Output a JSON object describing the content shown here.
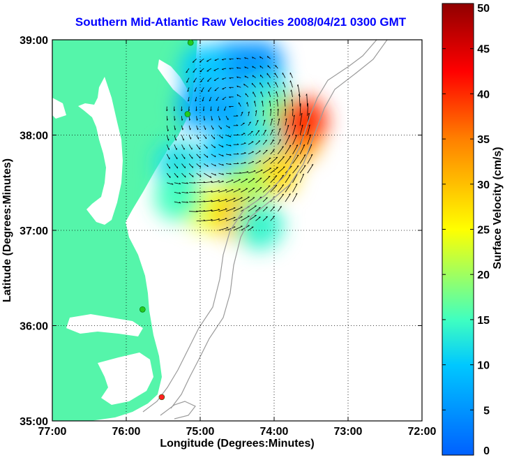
{
  "chart_data": {
    "type": "heatmap",
    "title": "Southern Mid-Atlantic Raw Velocities 2008/04/21 0300 GMT",
    "xlabel": "Longitude (Degrees:Minutes)",
    "ylabel": "Latitude (Degrees:Minutes)",
    "xlim": [
      -77,
      -72
    ],
    "ylim": [
      35,
      39
    ],
    "xticks": [
      "77:00",
      "76:00",
      "75:00",
      "74:00",
      "73:00",
      "72:00"
    ],
    "yticks": [
      "35:00",
      "36:00",
      "37:00",
      "38:00",
      "39:00"
    ],
    "grid": "dotted",
    "colorbar": {
      "label": "Surface Velocity (cm/s)",
      "min": 0,
      "max": 50,
      "ticks": [
        "0",
        "5",
        "10",
        "15",
        "20",
        "25",
        "30",
        "35",
        "40",
        "45",
        "50"
      ]
    },
    "stations": [
      {
        "lon": -75.13,
        "lat": 38.97,
        "color": "#22cc22"
      },
      {
        "lon": -75.17,
        "lat": 38.22,
        "color": "#22cc22"
      },
      {
        "lon": -75.78,
        "lat": 36.17,
        "color": "#22cc22"
      },
      {
        "lon": -75.52,
        "lat": 35.25,
        "color": "#ff2020"
      }
    ],
    "velocity_patches": [
      {
        "lon": -74.55,
        "lat": 38.75,
        "speed": 6
      },
      {
        "lon": -74.95,
        "lat": 38.7,
        "speed": 10
      },
      {
        "lon": -74.2,
        "lat": 38.75,
        "speed": 5
      },
      {
        "lon": -75.0,
        "lat": 38.3,
        "speed": 7
      },
      {
        "lon": -74.55,
        "lat": 38.25,
        "speed": 7
      },
      {
        "lon": -74.1,
        "lat": 38.4,
        "speed": 12
      },
      {
        "lon": -73.9,
        "lat": 38.2,
        "speed": 18
      },
      {
        "lon": -73.7,
        "lat": 37.95,
        "speed": 32
      },
      {
        "lon": -74.2,
        "lat": 37.9,
        "speed": 13
      },
      {
        "lon": -74.65,
        "lat": 37.8,
        "speed": 10
      },
      {
        "lon": -75.3,
        "lat": 37.7,
        "speed": 12
      },
      {
        "lon": -74.0,
        "lat": 37.6,
        "speed": 28
      },
      {
        "lon": -74.4,
        "lat": 37.45,
        "speed": 20
      },
      {
        "lon": -74.95,
        "lat": 37.25,
        "speed": 24
      },
      {
        "lon": -74.5,
        "lat": 37.15,
        "speed": 29
      },
      {
        "lon": -75.3,
        "lat": 37.35,
        "speed": 15
      },
      {
        "lon": -74.2,
        "lat": 37.05,
        "speed": 14
      },
      {
        "lon": -73.6,
        "lat": 38.15,
        "speed": 40
      }
    ]
  }
}
